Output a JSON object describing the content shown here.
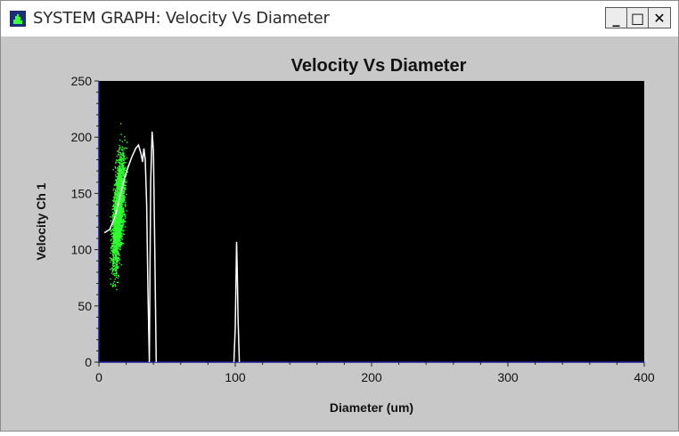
{
  "window": {
    "title": "SYSTEM GRAPH: Velocity Vs Diameter",
    "controls": {
      "minimize": "_",
      "maximize": "□",
      "close": "✕"
    },
    "icon": "histogram-app-icon"
  },
  "chart_data": {
    "type": "scatter",
    "title": "Velocity Vs Diameter",
    "xlabel": "Diameter (um)",
    "ylabel": "Velocity Ch 1",
    "xlim": [
      0,
      400
    ],
    "ylim": [
      0,
      250
    ],
    "x_ticks": [
      0,
      100,
      200,
      300,
      400
    ],
    "y_ticks": [
      0,
      50,
      100,
      150,
      200,
      250
    ],
    "plot_background": "#000000",
    "grid": false,
    "series": [
      {
        "kind": "scatter-cloud",
        "color": "#2cff2c",
        "x_range": [
          2,
          30
        ],
        "y_range": [
          45,
          240
        ],
        "center": [
          14,
          135
        ],
        "note": "dense elongated cloud"
      },
      {
        "kind": "line",
        "color": "#ffffff",
        "points": [
          [
            4,
            115
          ],
          [
            8,
            118
          ],
          [
            12,
            130
          ],
          [
            15,
            145
          ],
          [
            18,
            160
          ],
          [
            21,
            172
          ],
          [
            24,
            182
          ],
          [
            27,
            190
          ],
          [
            29,
            193
          ],
          [
            31,
            185
          ],
          [
            32,
            178
          ],
          [
            33,
            190
          ],
          [
            34,
            180
          ],
          [
            35,
            140
          ],
          [
            36,
            60
          ],
          [
            37,
            0
          ],
          [
            37.5,
            90
          ],
          [
            38,
            160
          ],
          [
            39,
            205
          ],
          [
            40,
            188
          ],
          [
            41,
            100
          ],
          [
            42,
            0
          ]
        ]
      },
      {
        "kind": "line",
        "color": "#ffffff",
        "points": [
          [
            99,
            0
          ],
          [
            100,
            30
          ],
          [
            100.5,
            70
          ],
          [
            101,
            107
          ],
          [
            101.5,
            80
          ],
          [
            102,
            40
          ],
          [
            103,
            0
          ]
        ]
      }
    ]
  }
}
